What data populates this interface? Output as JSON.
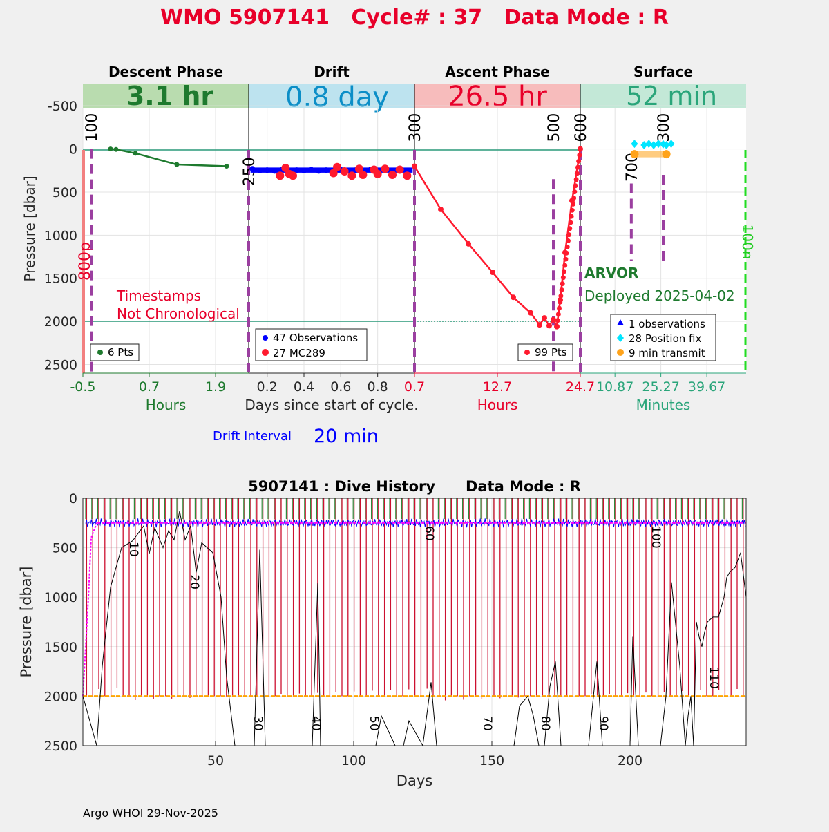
{
  "title": "WMO 5907141   Cycle# : 37   Data Mode : R",
  "colors": {
    "title": "#e8002a",
    "descent": "#1e7a2e",
    "descent_bg": "#b9dcaf",
    "drift": "#0b8ec7",
    "drift_bg": "#bde3ef",
    "ascent": "#e8002a",
    "ascent_bg": "#f7bcbc",
    "surface": "#2aa57a",
    "surface_bg": "#c3e8d7",
    "marker": "#9b3fa0",
    "obs_blue": "#0000ff",
    "mc289": "#ff1a2e",
    "position": "#00e5ff",
    "transmit": "#ffa31a",
    "history_red": "#cc1030",
    "history_magenta": "#ff00ff",
    "history_orange": "#ffa500"
  },
  "phases": [
    {
      "name": "Descent Phase",
      "duration": "3.1 hr"
    },
    {
      "name": "Drift",
      "duration": "0.8 day"
    },
    {
      "name": "Ascent Phase",
      "duration": "26.5 hr"
    },
    {
      "name": "Surface",
      "duration": "52 min"
    }
  ],
  "chart_data": [
    {
      "type": "scatter",
      "title": "Cycle profile",
      "ylabel": "Pressure [dbar]",
      "ylim": [
        -750,
        2600
      ],
      "yticks": [
        -500,
        0,
        500,
        1000,
        1500,
        2000,
        2500
      ],
      "ytick_labels": [
        "-500",
        "0",
        "500",
        "1000",
        "1500",
        "2000",
        "2500"
      ],
      "xlabel_descent": "Hours",
      "xlabel_drift": "Days since start of cycle.",
      "xlabel_ascent": "Hours",
      "xlabel_surface": "Minutes",
      "panels": {
        "descent": {
          "xlim": [
            -0.5,
            2.5
          ],
          "ticks": [
            -0.5,
            0.7,
            1.9
          ],
          "tick_labels": [
            "-0.5",
            "0.7",
            "1.9"
          ],
          "series": [
            {
              "name": "Descent",
              "x": [
                0.0,
                0.1,
                0.45,
                1.2,
                2.1
              ],
              "y": [
                0,
                5,
                50,
                180,
                200
              ]
            }
          ],
          "markers": [
            {
              "label": "100",
              "x": -0.35
            }
          ],
          "legend": "6 Pts",
          "annotation": "Timestamps\nNot Chronological",
          "side_label": "800p"
        },
        "drift": {
          "xlim": [
            0.1,
            1.0
          ],
          "ticks": [
            0.2,
            0.4,
            0.6,
            0.8
          ],
          "tick_labels": [
            "0.2",
            "0.4",
            "0.6",
            "0.8"
          ],
          "observations": {
            "x": [
              0.12,
              0.16,
              0.2,
              0.24,
              0.28,
              0.32,
              0.36,
              0.4,
              0.44,
              0.48,
              0.52,
              0.56,
              0.6,
              0.64,
              0.68,
              0.72,
              0.76,
              0.8,
              0.84,
              0.88,
              0.92,
              0.96
            ],
            "y": [
              230,
              250,
              245,
              255,
              240,
              250,
              245,
              250,
              240,
              255,
              245,
              250,
              240,
              250,
              245,
              255,
              240,
              250,
              245,
              255,
              240,
              250
            ]
          },
          "mc289": {
            "x": [
              0.27,
              0.3,
              0.32,
              0.34,
              0.56,
              0.58,
              0.62,
              0.66,
              0.7,
              0.72,
              0.78,
              0.8,
              0.84,
              0.88,
              0.92,
              0.96
            ],
            "y": [
              310,
              220,
              290,
              310,
              280,
              210,
              260,
              310,
              230,
              300,
              240,
              290,
              230,
              300,
              240,
              310
            ]
          },
          "markers": [
            {
              "label": "250",
              "x": 0.1
            }
          ],
          "legend": [
            "47 Observations",
            "27 MC289"
          ]
        },
        "ascent": {
          "xlim": [
            0.7,
            24.7
          ],
          "ticks": [
            0.7,
            12.7,
            24.7
          ],
          "tick_labels": [
            "0.7",
            "12.7",
            "24.7"
          ],
          "series": [
            {
              "name": "Ascent",
              "x": [
                0.7,
                4.5,
                8.5,
                12,
                15,
                17.5,
                18.8,
                19.5,
                20.2,
                20.8,
                21.3,
                21.8,
                22.5,
                23.5,
                24.7
              ],
              "y": [
                200,
                700,
                1100,
                1430,
                1720,
                1900,
                2040,
                1960,
                2050,
                1980,
                2060,
                1750,
                1200,
                600,
                0
              ]
            }
          ],
          "markers": [
            {
              "label": "300",
              "x": 0.7
            },
            {
              "label": "500",
              "x": 20.8
            },
            {
              "label": "600",
              "x": 24.7
            }
          ],
          "legend": "99 Pts"
        },
        "surface": {
          "xlim": [
            0,
            52
          ],
          "ticks": [
            10.87,
            25.27,
            39.67
          ],
          "tick_labels": [
            "10.87",
            "25.27",
            "39.67"
          ],
          "observations": {
            "x": [
              21.5
            ],
            "y": [
              60
            ]
          },
          "position": {
            "x": [
              17,
              20,
              21.5,
              23,
              24.5,
              26,
              27,
              28.5
            ],
            "y": [
              -60,
              -45,
              -60,
              -45,
              -60,
              -55,
              -45,
              -60
            ]
          },
          "transmit": {
            "x": [
              17,
              27
            ],
            "y": [
              60,
              60
            ]
          },
          "markers": [
            {
              "label": "700",
              "x": 16
            },
            {
              "label": "300",
              "x": 26
            }
          ],
          "legend": [
            "1 observations",
            "28 Position fix",
            "9 min transmit"
          ],
          "float_type": "ARVOR",
          "deployed": "Deployed 2025-04-02",
          "side_label": "100n"
        }
      },
      "drift_interval_label": "Drift Interval",
      "drift_interval_value": "20 min"
    },
    {
      "type": "line",
      "title": "5907141 : Dive History      Data Mode : R",
      "xlabel": "Days",
      "ylabel": "Pressure [dbar]",
      "xlim": [
        2,
        242
      ],
      "ylim": [
        0,
        2500
      ],
      "xticks": [
        50,
        100,
        150,
        200
      ],
      "xtick_labels": [
        "50",
        "100",
        "150",
        "200"
      ],
      "yticks": [
        0,
        500,
        1000,
        1500,
        2000,
        2500
      ],
      "ytick_labels": [
        "0",
        "500",
        "1000",
        "1500",
        "2000",
        "2500"
      ],
      "park_pressure": 250,
      "profile_pressure": 2000,
      "bottom_trace": {
        "x": [
          2,
          7,
          9,
          12,
          16,
          20,
          24,
          26,
          28,
          31,
          33,
          35,
          37,
          39,
          41,
          43,
          45,
          47,
          49,
          52,
          54,
          57,
          60,
          62,
          64,
          66,
          68,
          70,
          80,
          85,
          87,
          88,
          90,
          100,
          105,
          108,
          110,
          115,
          118,
          120,
          125,
          128,
          130,
          135,
          140,
          150,
          155,
          158,
          160,
          163,
          165,
          167,
          169,
          171,
          173,
          175,
          178,
          180,
          185,
          188,
          190,
          195,
          200,
          201,
          203,
          205,
          208,
          211,
          213,
          215,
          218,
          220,
          221,
          222,
          223,
          224,
          225,
          226,
          227,
          228,
          230,
          232,
          233,
          234,
          235,
          236,
          238,
          240,
          242
        ],
        "y": [
          2000,
          2500,
          1700,
          900,
          500,
          430,
          280,
          560,
          300,
          500,
          330,
          420,
          130,
          420,
          280,
          750,
          450,
          500,
          550,
          1000,
          1800,
          2500,
          2500,
          2500,
          2500,
          520,
          2500,
          2500,
          2500,
          2500,
          860,
          2500,
          2500,
          2500,
          2500,
          2500,
          2200,
          2500,
          2500,
          2250,
          2500,
          1860,
          2500,
          2500,
          2500,
          2500,
          2500,
          2500,
          2100,
          2000,
          2200,
          2500,
          2500,
          1900,
          1650,
          2500,
          2500,
          2500,
          2500,
          1650,
          2500,
          2500,
          2500,
          1400,
          2500,
          2500,
          2500,
          2500,
          2000,
          850,
          1700,
          2500,
          2200,
          2000,
          2500,
          1250,
          1400,
          1500,
          1350,
          1250,
          1200,
          1200,
          1100,
          1000,
          800,
          750,
          700,
          550,
          1000
        ]
      },
      "cycle_labels": [
        {
          "label": "10",
          "x": 19,
          "y": 440
        },
        {
          "label": "20",
          "x": 41,
          "y": 770
        },
        {
          "label": "30",
          "x": 64,
          "y": 2200
        },
        {
          "label": "40",
          "x": 85,
          "y": 2200
        },
        {
          "label": "50",
          "x": 106,
          "y": 2200
        },
        {
          "label": "60",
          "x": 126,
          "y": 280
        },
        {
          "label": "70",
          "x": 147,
          "y": 2200
        },
        {
          "label": "80",
          "x": 168,
          "y": 2200
        },
        {
          "label": "90",
          "x": 189,
          "y": 2200
        },
        {
          "label": "100",
          "x": 208,
          "y": 280
        },
        {
          "label": "110",
          "x": 229,
          "y": 1700
        }
      ]
    }
  ],
  "footer": "Argo WHOI 29-Nov-2025"
}
